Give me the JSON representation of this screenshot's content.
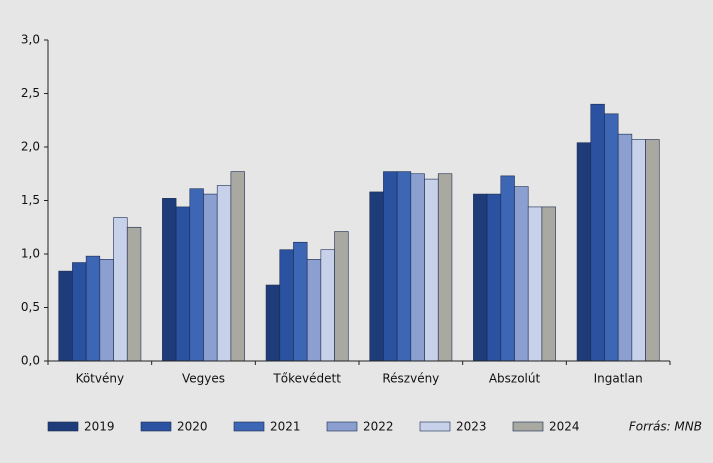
{
  "chart_data": {
    "type": "bar",
    "categories": [
      "Kötvény",
      "Vegyes",
      "Tőkevédett",
      "Részvény",
      "Abszolút",
      "Ingatlan"
    ],
    "series": [
      {
        "name": "2019",
        "color": "#1f3c7a",
        "values": [
          0.84,
          1.52,
          0.71,
          1.58,
          1.56,
          2.04
        ]
      },
      {
        "name": "2020",
        "color": "#2b52a0",
        "values": [
          0.92,
          1.44,
          1.04,
          1.77,
          1.56,
          2.4
        ]
      },
      {
        "name": "2021",
        "color": "#3d66b4",
        "values": [
          0.98,
          1.61,
          1.11,
          1.77,
          1.73,
          2.31
        ]
      },
      {
        "name": "2022",
        "color": "#8c9fd1",
        "values": [
          0.95,
          1.56,
          0.95,
          1.75,
          1.63,
          2.12
        ]
      },
      {
        "name": "2023",
        "color": "#c8d1ea",
        "values": [
          1.34,
          1.64,
          1.04,
          1.7,
          1.44,
          2.07
        ]
      },
      {
        "name": "2024",
        "color": "#a9a9a2",
        "values": [
          1.25,
          1.77,
          1.21,
          1.75,
          1.44,
          2.07
        ]
      }
    ],
    "ylim": [
      0,
      3
    ],
    "yticks": [
      {
        "value": 0,
        "label": "0,0"
      },
      {
        "value": 0.5,
        "label": "0,5"
      },
      {
        "value": 1,
        "label": "1,0"
      },
      {
        "value": 1.5,
        "label": "1,5"
      },
      {
        "value": 2,
        "label": "2,0"
      },
      {
        "value": 2.5,
        "label": "2,5"
      },
      {
        "value": 3,
        "label": "3,0"
      }
    ],
    "source": "Forrás: MNB",
    "legend": "bottom"
  }
}
